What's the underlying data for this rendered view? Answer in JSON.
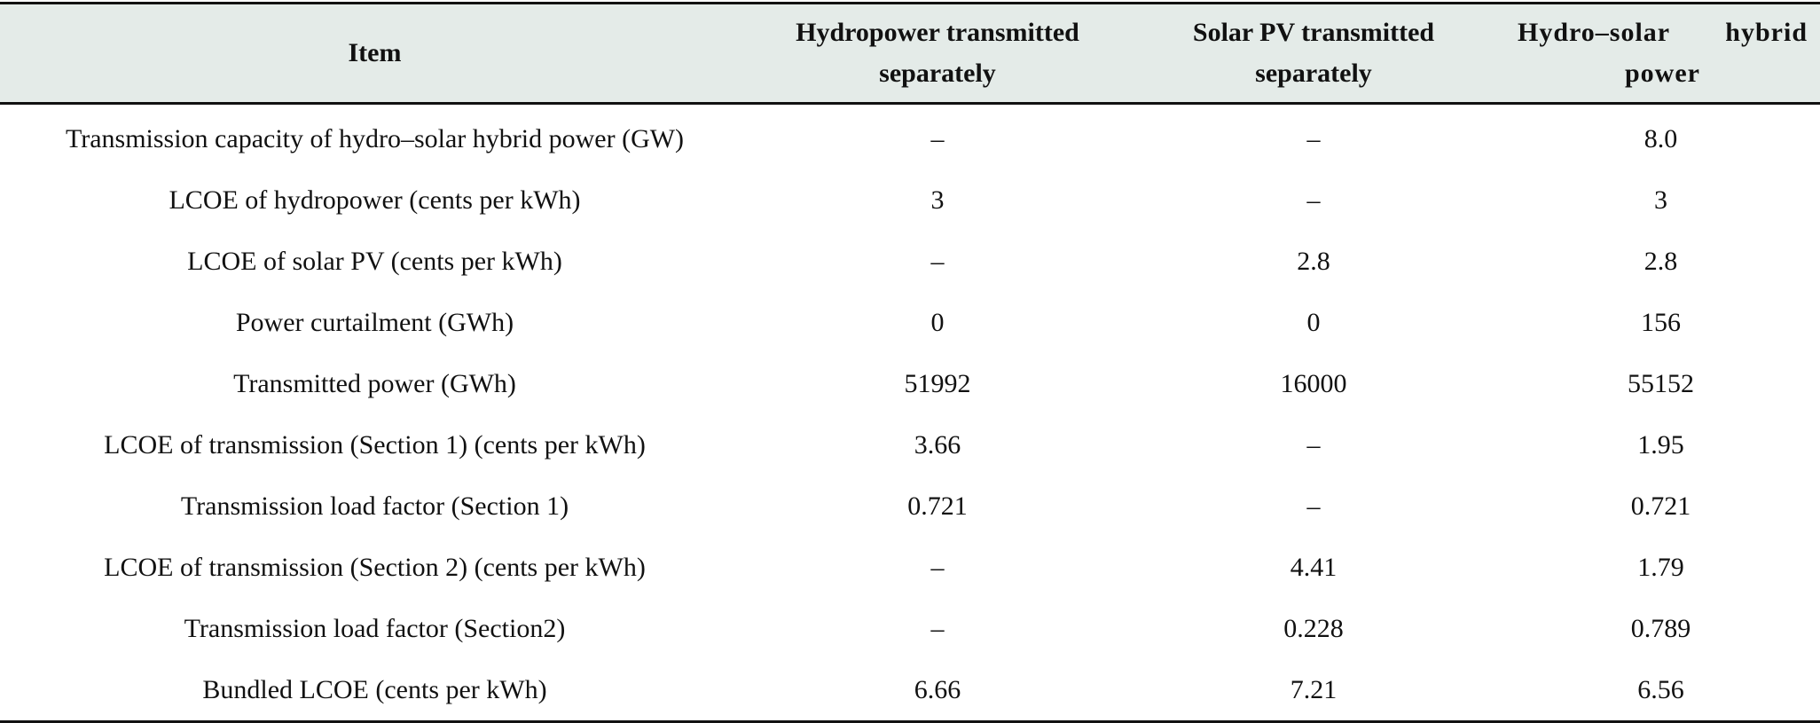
{
  "table": {
    "headers": [
      "Item",
      "Hydropower transmitted separately",
      "Solar PV transmitted separately",
      "Hydro–solar hybrid power"
    ],
    "rows": [
      [
        "Transmission capacity of hydro–solar hybrid power (GW)",
        "–",
        "–",
        "8.0"
      ],
      [
        "LCOE of hydropower (cents per kWh)",
        "3",
        "–",
        "3"
      ],
      [
        "LCOE of solar PV (cents per kWh)",
        "–",
        "2.8",
        "2.8"
      ],
      [
        "Power curtailment (GWh)",
        "0",
        "0",
        "156"
      ],
      [
        "Transmitted power (GWh)",
        "51992",
        "16000",
        "55152"
      ],
      [
        "LCOE of transmission (Section 1) (cents per kWh)",
        "3.66",
        "–",
        "1.95"
      ],
      [
        "Transmission load factor (Section 1)",
        "0.721",
        "–",
        "0.721"
      ],
      [
        "LCOE of transmission (Section 2) (cents per kWh)",
        "–",
        "4.41",
        "1.79"
      ],
      [
        "Transmission load factor (Section2)",
        "–",
        "0.228",
        "0.789"
      ],
      [
        "Bundled LCOE (cents per kWh)",
        "6.66",
        "7.21",
        "6.56"
      ]
    ],
    "colors": {
      "header_background": "#e4ebe8",
      "rule": "#111111",
      "text": "#111111"
    }
  }
}
